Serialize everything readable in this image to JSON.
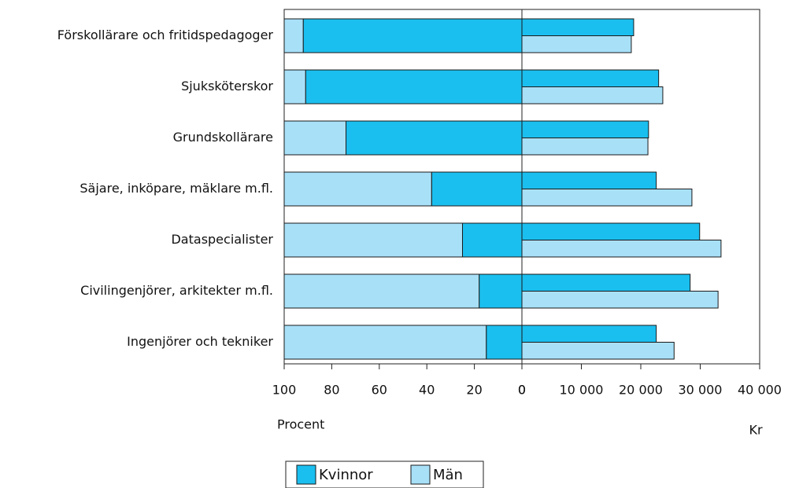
{
  "chart_data": [
    {
      "type": "bar",
      "orientation": "horizontal",
      "stacked": true,
      "categories": [
        "Förskollärare och fritidspedagoger",
        "Sjuksköterskor",
        "Grundskollärare",
        "Säjare, inköpare, mäklare m.fl.",
        "Dataspecialister",
        "Civilingenjörer, arkitekter m.fl.",
        "Ingenjörer och tekniker"
      ],
      "series": [
        {
          "name": "Kvinnor",
          "color": "#1bbfef",
          "values": [
            92,
            91,
            74,
            38,
            25,
            18,
            15
          ]
        },
        {
          "name": "Män",
          "color": "#a8e0f8",
          "values": [
            8,
            9,
            26,
            62,
            75,
            82,
            85
          ]
        }
      ],
      "xlim": [
        100,
        0
      ],
      "xticks": [
        100,
        80,
        60,
        40,
        20,
        0
      ],
      "xlabel": "Procent"
    },
    {
      "type": "bar",
      "orientation": "horizontal",
      "stacked": false,
      "series": [
        {
          "name": "Kvinnor",
          "color": "#1bbfef",
          "values": [
            18800,
            23000,
            21300,
            22600,
            29900,
            28300,
            22600
          ]
        },
        {
          "name": "Män",
          "color": "#a8e0f8",
          "values": [
            18400,
            23700,
            21200,
            28600,
            33500,
            33000,
            25600
          ]
        }
      ],
      "xlim": [
        0,
        40000
      ],
      "xticks": [
        0,
        {
          "value": 10000,
          "label": "10 000"
        },
        {
          "value": 20000,
          "label": "20 000"
        },
        {
          "value": 30000,
          "label": "30 000"
        },
        {
          "value": 40000,
          "label": "40 000"
        }
      ],
      "xlabel": "Kr"
    }
  ]
}
